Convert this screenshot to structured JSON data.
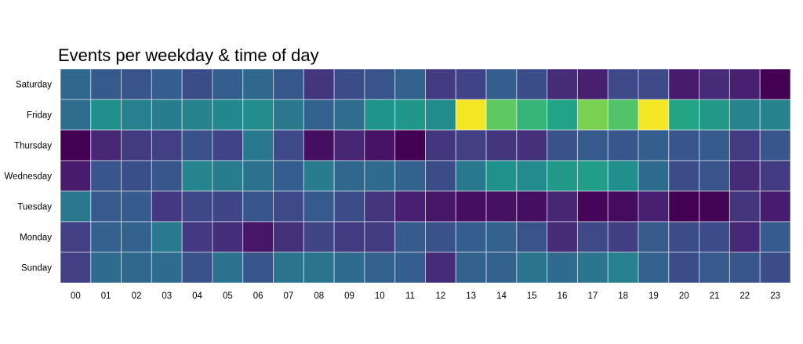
{
  "chart_data": {
    "type": "heatmap",
    "title": "Events per weekday & time of day",
    "xlabel": "",
    "ylabel": "",
    "x": [
      "00",
      "01",
      "02",
      "03",
      "04",
      "05",
      "06",
      "07",
      "08",
      "09",
      "10",
      "11",
      "12",
      "13",
      "14",
      "15",
      "16",
      "17",
      "18",
      "19",
      "20",
      "21",
      "22",
      "23"
    ],
    "y": [
      "Saturday",
      "Friday",
      "Thursday",
      "Wednesday",
      "Tuesday",
      "Monday",
      "Sunday"
    ],
    "colormap": "viridis",
    "values": [
      [
        0.42,
        0.36,
        0.33,
        0.38,
        0.3,
        0.38,
        0.42,
        0.35,
        0.2,
        0.3,
        0.33,
        0.4,
        0.22,
        0.25,
        0.38,
        0.3,
        0.16,
        0.12,
        0.28,
        0.28,
        0.1,
        0.16,
        0.12,
        0.0
      ],
      [
        0.45,
        0.62,
        0.54,
        0.52,
        0.55,
        0.58,
        0.6,
        0.5,
        0.4,
        0.45,
        0.64,
        0.66,
        0.6,
        0.99,
        0.84,
        0.78,
        0.72,
        0.88,
        0.82,
        0.99,
        0.73,
        0.67,
        0.56,
        0.55
      ],
      [
        0.0,
        0.15,
        0.22,
        0.24,
        0.32,
        0.25,
        0.5,
        0.28,
        0.05,
        0.14,
        0.07,
        0.0,
        0.2,
        0.24,
        0.2,
        0.18,
        0.32,
        0.36,
        0.34,
        0.38,
        0.34,
        0.36,
        0.22,
        0.34
      ],
      [
        0.1,
        0.34,
        0.31,
        0.34,
        0.56,
        0.52,
        0.47,
        0.38,
        0.52,
        0.42,
        0.44,
        0.4,
        0.3,
        0.5,
        0.63,
        0.59,
        0.67,
        0.69,
        0.62,
        0.44,
        0.3,
        0.33,
        0.16,
        0.22
      ],
      [
        0.5,
        0.36,
        0.37,
        0.21,
        0.27,
        0.26,
        0.34,
        0.28,
        0.36,
        0.3,
        0.2,
        0.12,
        0.08,
        0.05,
        0.06,
        0.05,
        0.14,
        0.02,
        0.04,
        0.12,
        0.0,
        0.01,
        0.2,
        0.1
      ],
      [
        0.24,
        0.4,
        0.4,
        0.51,
        0.21,
        0.17,
        0.08,
        0.18,
        0.26,
        0.22,
        0.22,
        0.37,
        0.32,
        0.38,
        0.4,
        0.33,
        0.16,
        0.28,
        0.23,
        0.36,
        0.3,
        0.29,
        0.15,
        0.37
      ],
      [
        0.24,
        0.44,
        0.42,
        0.44,
        0.32,
        0.47,
        0.34,
        0.48,
        0.48,
        0.44,
        0.4,
        0.38,
        0.16,
        0.4,
        0.4,
        0.48,
        0.44,
        0.48,
        0.54,
        0.4,
        0.3,
        0.36,
        0.34,
        0.3
      ]
    ]
  }
}
